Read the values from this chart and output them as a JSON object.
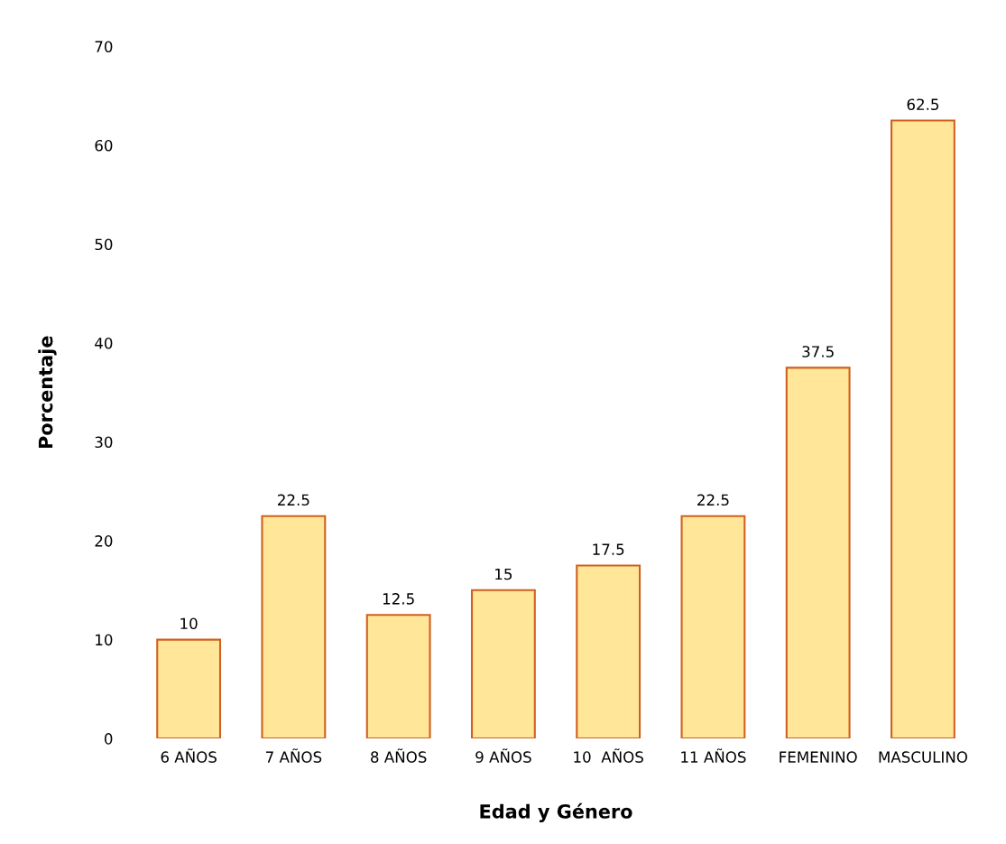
{
  "chart_data": {
    "type": "bar",
    "xlabel": "Edad y Género",
    "ylabel": "Porcentaje",
    "categories": [
      "6 AÑOS",
      "7 AÑOS",
      "8 AÑOS",
      "9 AÑOS",
      "10  AÑOS",
      "11 AÑOS",
      "FEMENINO",
      "MASCULINO"
    ],
    "values": [
      10,
      22.5,
      12.5,
      15,
      17.5,
      22.5,
      37.5,
      62.5
    ],
    "color": "#ffe699",
    "ylim": [
      0,
      70
    ],
    "yticks": [
      0,
      10,
      20,
      30,
      40,
      50,
      60,
      70
    ],
    "data_labels": true
  }
}
